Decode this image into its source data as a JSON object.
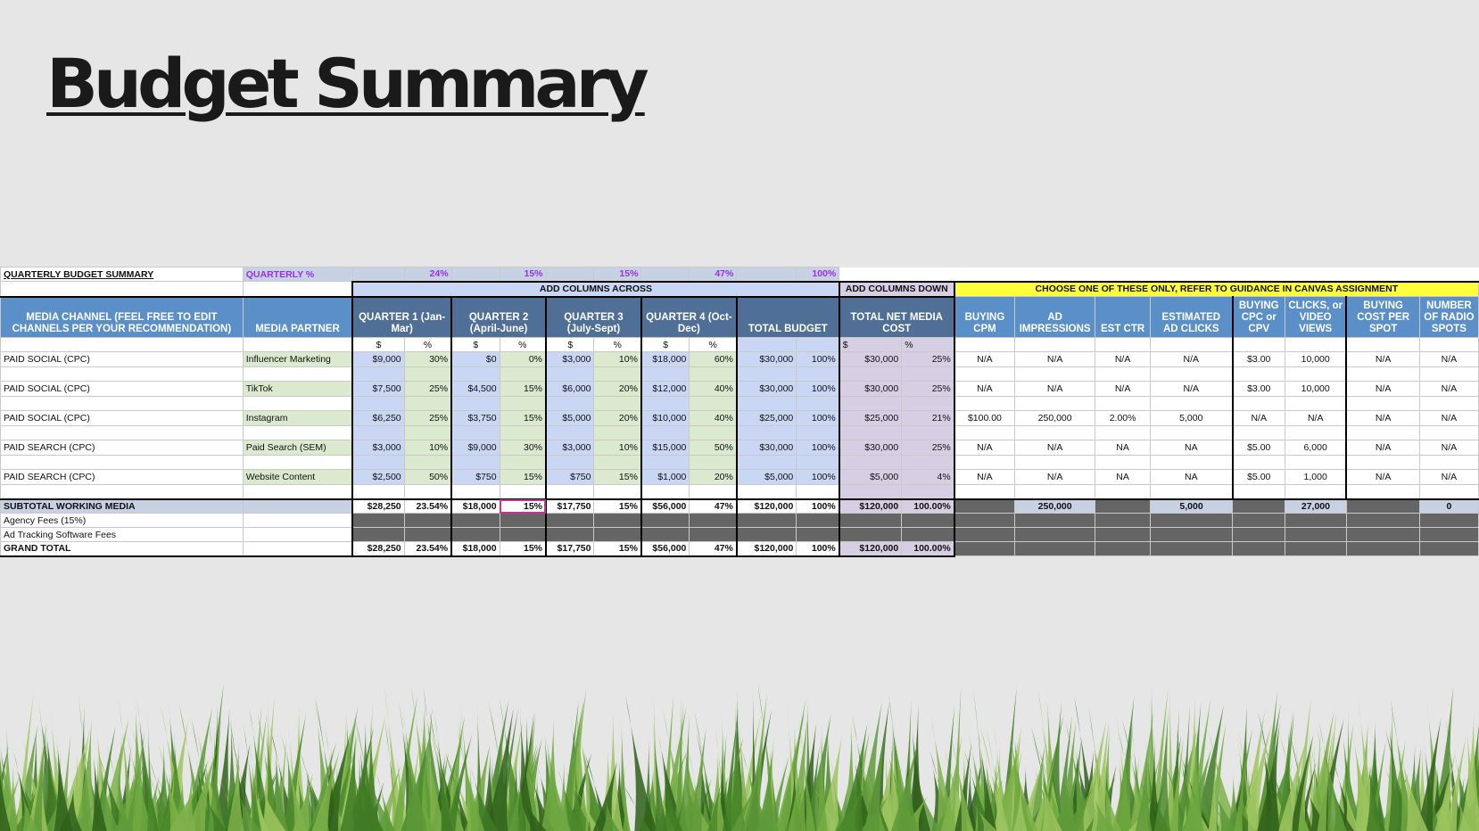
{
  "title": "Budget Summary",
  "sheet": {
    "summary_label": "QUARTERLY BUDGET SUMMARY",
    "quarterly_pct_label": "QUARTERLY %",
    "quarterly_pcts": [
      "24%",
      "15%",
      "15%",
      "47%",
      "100%"
    ],
    "add_across": "ADD COLUMNS ACROSS",
    "add_down": "ADD COLUMNS DOWN",
    "choose_one": "CHOOSE ONE OF THESE ONLY, REFER TO GUIDANCE IN CANVAS ASSIGNMENT",
    "headers": {
      "channel": "MEDIA CHANNEL (FEEL FREE TO EDIT CHANNELS PER YOUR RECOMMENDATION)",
      "partner": "MEDIA PARTNER",
      "q1": "QUARTER 1 (Jan-Mar)",
      "q2": "QUARTER 2 (April-June)",
      "q3": "QUARTER 3 (July-Sept)",
      "q4": "QUARTER 4 (Oct-Dec)",
      "total_budget": "TOTAL BUDGET",
      "net_media": "TOTAL NET MEDIA COST",
      "cpm": "BUYING CPM",
      "impressions": "AD IMPRESSIONS",
      "ctr": "EST CTR",
      "clicks": "ESTIMATED AD CLICKS",
      "cpc": "BUYING CPC or CPV",
      "views": "CLICKS, or VIDEO VIEWS",
      "cost_spot": "BUYING COST PER SPOT",
      "radio": "NUMBER OF RADIO SPOTS"
    },
    "dollar": "$",
    "percent": "%",
    "rows": [
      {
        "channel": "PAID SOCIAL (CPC)",
        "partner": "Influencer Marketing",
        "vals": [
          "$9,000",
          "30%",
          "$0",
          "0%",
          "$3,000",
          "10%",
          "$18,000",
          "60%",
          "$30,000",
          "100%",
          "$30,000",
          "25%",
          "N/A",
          "N/A",
          "N/A",
          "N/A",
          "$3.00",
          "10,000",
          "N/A",
          "N/A"
        ]
      },
      {
        "channel": "PAID SOCIAL (CPC)",
        "partner": "TikTok",
        "vals": [
          "$7,500",
          "25%",
          "$4,500",
          "15%",
          "$6,000",
          "20%",
          "$12,000",
          "40%",
          "$30,000",
          "100%",
          "$30,000",
          "25%",
          "N/A",
          "N/A",
          "N/A",
          "N/A",
          "$3.00",
          "10,000",
          "N/A",
          "N/A"
        ]
      },
      {
        "channel": "PAID SOCIAL (CPC)",
        "partner": "Instagram",
        "vals": [
          "$6,250",
          "25%",
          "$3,750",
          "15%",
          "$5,000",
          "20%",
          "$10,000",
          "40%",
          "$25,000",
          "100%",
          "$25,000",
          "21%",
          "$100.00",
          "250,000",
          "2.00%",
          "5,000",
          "N/A",
          "N/A",
          "N/A",
          "N/A"
        ]
      },
      {
        "channel": "PAID SEARCH (CPC)",
        "partner": "Paid Search (SEM)",
        "vals": [
          "$3,000",
          "10%",
          "$9,000",
          "30%",
          "$3,000",
          "10%",
          "$15,000",
          "50%",
          "$30,000",
          "100%",
          "$30,000",
          "25%",
          "N/A",
          "N/A",
          "NA",
          "NA",
          "$5.00",
          "6,000",
          "N/A",
          "N/A"
        ]
      },
      {
        "channel": "PAID SEARCH (CPC)",
        "partner": "Website Content",
        "vals": [
          "$2,500",
          "50%",
          "$750",
          "15%",
          "$750",
          "15%",
          "$1,000",
          "20%",
          "$5,000",
          "100%",
          "$5,000",
          "4%",
          "N/A",
          "N/A",
          "NA",
          "NA",
          "$5.00",
          "1,000",
          "N/A",
          "N/A"
        ]
      }
    ],
    "subtotal": {
      "label": "SUBTOTAL WORKING MEDIA",
      "vals": [
        "$28,250",
        "23.54%",
        "$18,000",
        "15%",
        "$17,750",
        "15%",
        "$56,000",
        "47%",
        "$120,000",
        "100%",
        "$120,000",
        "100.00%",
        "",
        "250,000",
        "",
        "5,000",
        "",
        "27,000",
        "",
        "0"
      ]
    },
    "agency_fees": "Agency Fees (15%)",
    "ad_tracking": "Ad Tracking Software Fees",
    "grand_total": {
      "label": "GRAND TOTAL",
      "vals": [
        "$28,250",
        "23.54%",
        "$18,000",
        "15%",
        "$17,750",
        "15%",
        "$56,000",
        "47%",
        "$120,000",
        "100%",
        "$120,000",
        "100.00%"
      ]
    }
  },
  "colors": {
    "header_blue": "#5b8fc8",
    "header_dark": "#4f6f96",
    "percent_purple": "#9b30e0",
    "highlight_yellow": "#ffff3a",
    "grass_green": "#5f9a3a"
  }
}
